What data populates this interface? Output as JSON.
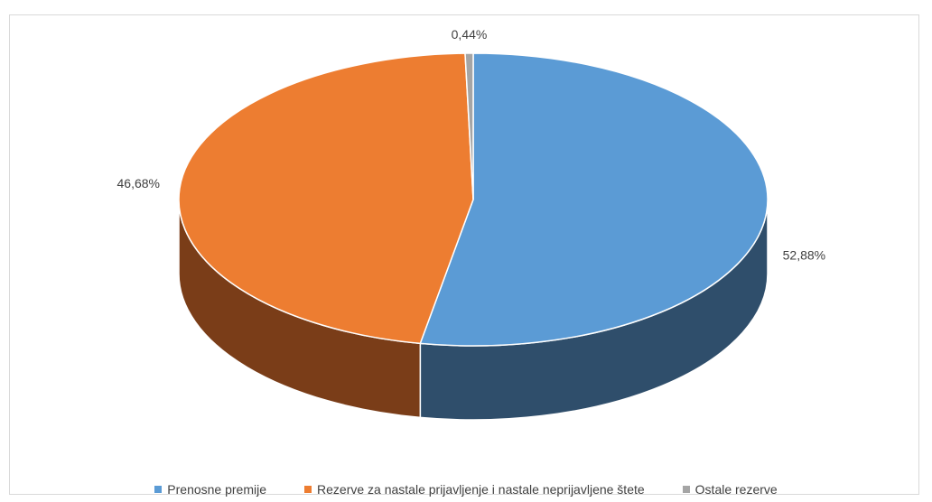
{
  "chart_data": {
    "type": "pie",
    "title": "",
    "series": [
      {
        "name": "Prenosne premije",
        "value": 52.88,
        "label": "52,88%",
        "color": "#5b9bd5",
        "side_color": "#2f4e6b"
      },
      {
        "name": "Rezerve za nastale prijavljenje i nastale neprijavljene štete",
        "value": 46.68,
        "label": "46,68%",
        "color": "#ed7d31",
        "side_color": "#7a3d18"
      },
      {
        "name": "Ostale rezerve",
        "value": 0.44,
        "label": "0,44%",
        "color": "#a5a5a5",
        "side_color": "#555555"
      }
    ],
    "legend_position": "bottom",
    "three_d": true
  }
}
